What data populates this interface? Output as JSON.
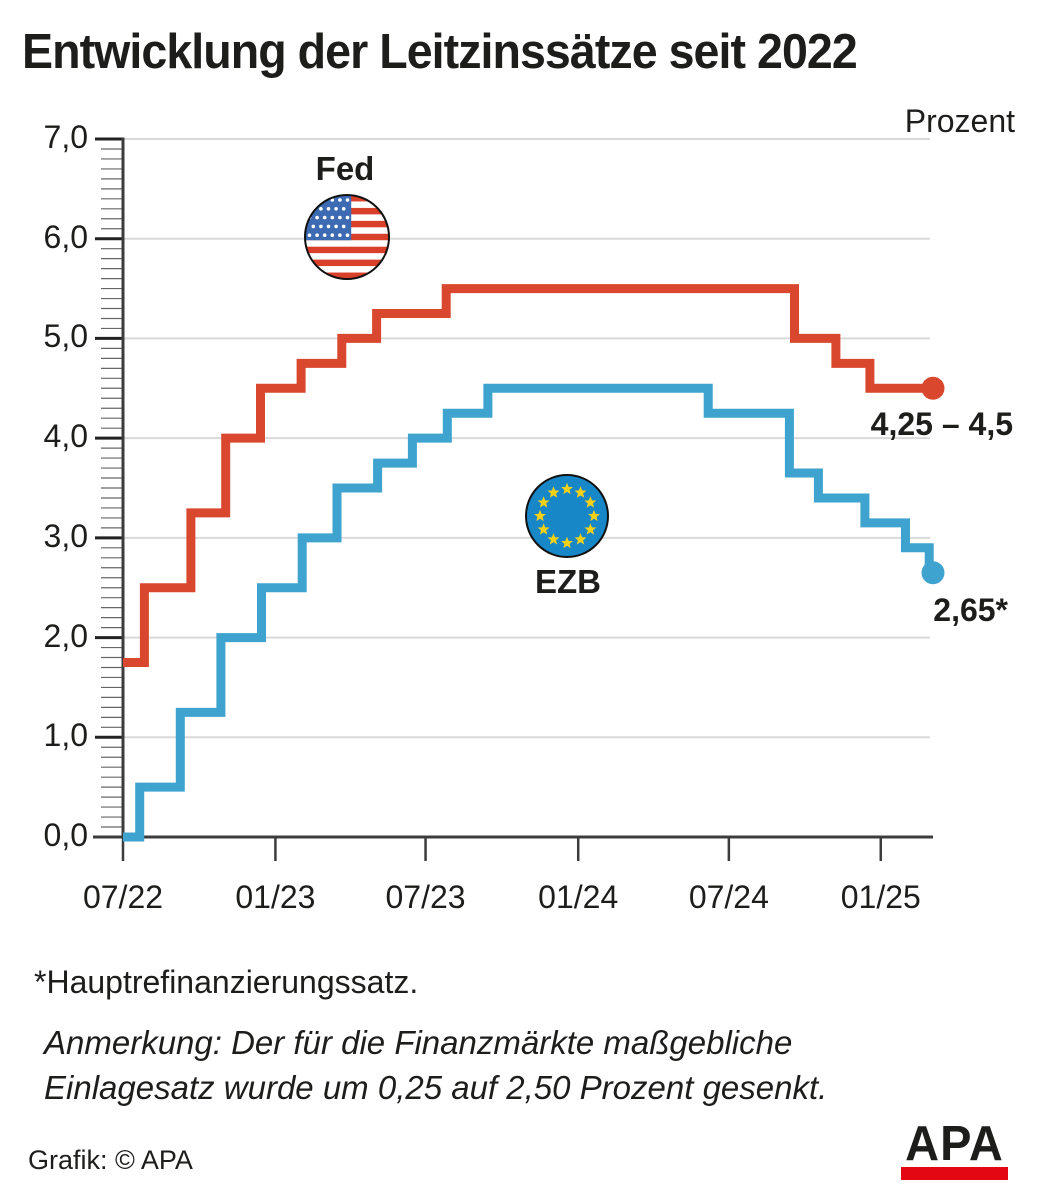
{
  "title": "Entwicklung der Leitzinssätze seit 2022",
  "notes": {
    "footnote": "*Hauptrefinanzierungssatz.",
    "line1": "Anmerkung: Der für die Finanzmärkte maßgebliche",
    "line2": "Einlagesatz wurde um 0,25 auf 2,50 Prozent gesenkt."
  },
  "credit": "Grafik: © APA",
  "logo": {
    "text": "APA"
  },
  "colors": {
    "fed_line": "#D9472E",
    "ezb_line": "#3EA3CE",
    "grid": "#D9D9D9",
    "axis": "#3C3C3C",
    "tick_minor": "#666666",
    "tick_major": "#222222",
    "text": "#1D1D1B",
    "us_flag_red": "#D9402A",
    "us_flag_blue": "#3D6BB3",
    "eu_flag_blue": "#1787C8",
    "eu_star_yellow": "#F7D117",
    "flag_outline": "#111111",
    "logo_red": "#E30613"
  },
  "chart_data": {
    "type": "line",
    "subtype": "step",
    "title": "Entwicklung der Leitzinssätze seit 2022",
    "unit_label": "Prozent",
    "ylim": [
      0,
      7
    ],
    "grid": "horizontal",
    "t_end": 32.1,
    "y_ticks": [
      {
        "label": "0,0",
        "v": 0
      },
      {
        "label": "1,0",
        "v": 1
      },
      {
        "label": "2,0",
        "v": 2
      },
      {
        "label": "3,0",
        "v": 3
      },
      {
        "label": "4,0",
        "v": 4
      },
      {
        "label": "5,0",
        "v": 5
      },
      {
        "label": "6,0",
        "v": 6
      },
      {
        "label": "7,0",
        "v": 7
      }
    ],
    "x_ticks": [
      {
        "label": "07/22",
        "t": 0
      },
      {
        "label": "01/23",
        "t": 6.04
      },
      {
        "label": "07/23",
        "t": 11.99
      },
      {
        "label": "01/24",
        "t": 18.04
      },
      {
        "label": "07/24",
        "t": 24.01
      },
      {
        "label": "01/25",
        "t": 30.03
      }
    ],
    "series": [
      {
        "name": "Fed",
        "icon": "us-flag-icon",
        "color": "#D9472E",
        "end_label": "4,25 – 4,5",
        "end_rate": 4.5,
        "steps": [
          {
            "date": "06/2022",
            "t": 0,
            "rate": 1.75
          },
          {
            "date": "07/2022",
            "t": 0.85,
            "rate": 2.5
          },
          {
            "date": "09/2022",
            "t": 2.69,
            "rate": 3.25
          },
          {
            "date": "11/2022",
            "t": 4.07,
            "rate": 4.0
          },
          {
            "date": "12/2022",
            "t": 5.45,
            "rate": 4.5
          },
          {
            "date": "02/2023",
            "t": 7.06,
            "rate": 4.75
          },
          {
            "date": "03/2023",
            "t": 8.67,
            "rate": 5.0
          },
          {
            "date": "05/2023",
            "t": 10.05,
            "rate": 5.25
          },
          {
            "date": "07/2023",
            "t": 12.81,
            "rate": 5.5
          },
          {
            "date": "09/2024",
            "t": 26.61,
            "rate": 5.0
          },
          {
            "date": "11/2024",
            "t": 28.25,
            "rate": 4.75
          },
          {
            "date": "12/2024",
            "t": 29.6,
            "rate": 4.5
          }
        ]
      },
      {
        "name": "EZB",
        "icon": "eu-flag-icon",
        "color": "#3EA3CE",
        "end_label": "2,65*",
        "end_rate": 2.65,
        "steps": [
          {
            "date": "06/2022",
            "t": 0,
            "rate": 0.0
          },
          {
            "date": "07/2022",
            "t": 0.66,
            "rate": 0.5
          },
          {
            "date": "09/2022",
            "t": 2.27,
            "rate": 1.25
          },
          {
            "date": "10/2022",
            "t": 3.88,
            "rate": 2.0
          },
          {
            "date": "12/2022",
            "t": 5.49,
            "rate": 2.5
          },
          {
            "date": "02/2023",
            "t": 7.1,
            "rate": 3.0
          },
          {
            "date": "03/2023",
            "t": 8.48,
            "rate": 3.5
          },
          {
            "date": "05/2023",
            "t": 10.09,
            "rate": 3.75
          },
          {
            "date": "06/2023",
            "t": 11.47,
            "rate": 4.0
          },
          {
            "date": "07/2023",
            "t": 12.85,
            "rate": 4.25
          },
          {
            "date": "09/2023",
            "t": 14.46,
            "rate": 4.5
          },
          {
            "date": "06/2024",
            "t": 23.19,
            "rate": 4.25
          },
          {
            "date": "09/2024",
            "t": 26.41,
            "rate": 3.65
          },
          {
            "date": "10/2024",
            "t": 27.56,
            "rate": 3.4
          },
          {
            "date": "12/2024",
            "t": 29.4,
            "rate": 3.15
          },
          {
            "date": "01/2025",
            "t": 31.01,
            "rate": 2.9
          },
          {
            "date": "03/2025",
            "t": 31.95,
            "rate": 2.65
          }
        ]
      }
    ]
  }
}
